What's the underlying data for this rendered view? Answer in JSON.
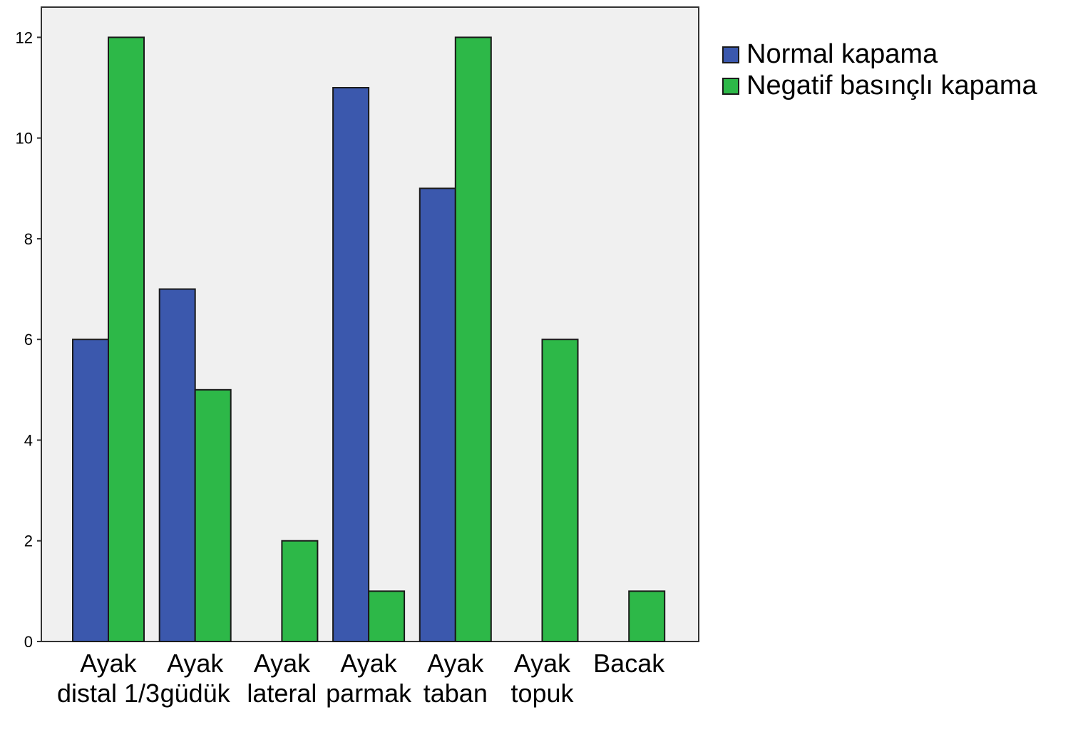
{
  "chart_data": {
    "type": "bar",
    "title": "",
    "xlabel": "",
    "ylabel": "",
    "ylim": [
      0,
      12.6
    ],
    "yticks": [
      0,
      2,
      4,
      6,
      8,
      10,
      12
    ],
    "grid": false,
    "legend_position": "top-right-outside",
    "categories": [
      [
        "Ayak",
        "distal 1/3"
      ],
      [
        "Ayak",
        "güdük"
      ],
      [
        "Ayak",
        "lateral"
      ],
      [
        "Ayak",
        "parmak"
      ],
      [
        "Ayak",
        "taban"
      ],
      [
        "Ayak",
        "topuk"
      ],
      [
        "Bacak"
      ]
    ],
    "series": [
      {
        "name": "Normal kapama",
        "color": "#3b58ad",
        "values": [
          6,
          7,
          0,
          11,
          9,
          0,
          0
        ]
      },
      {
        "name": "Negatif basınçlı kapama",
        "color": "#2db848",
        "values": [
          12,
          5,
          2,
          1,
          12,
          6,
          1
        ]
      }
    ],
    "plot_background": "#f0f0f0"
  }
}
